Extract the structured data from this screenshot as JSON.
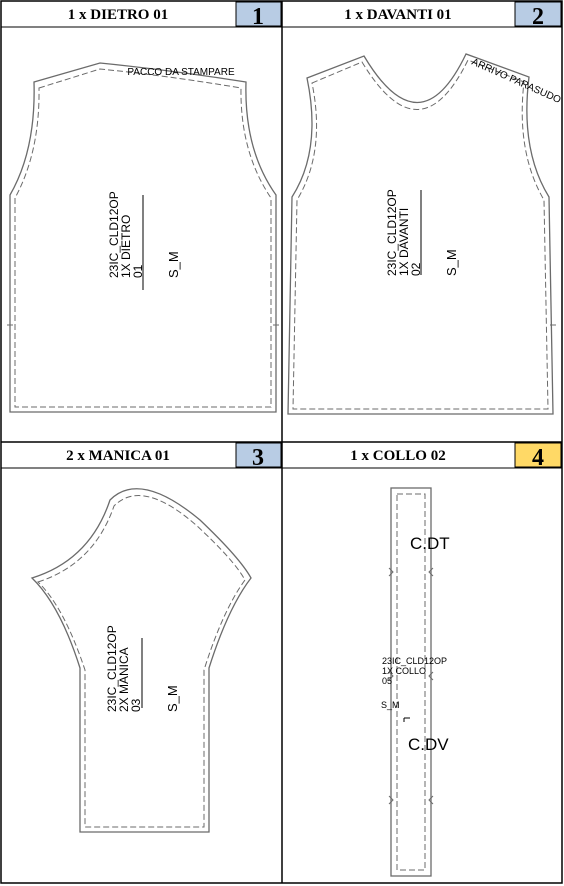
{
  "colors": {
    "badge_blue": "#b8cce4",
    "badge_yellow": "#ffd966",
    "line": "#000000",
    "pattern_line": "#6b6b6b"
  },
  "panels": [
    {
      "title": "1 x DIETRO 01",
      "number": "1",
      "label_lines": [
        "23IC_CLD12OP",
        "1X DIETRO",
        "01"
      ],
      "size": "S_M",
      "note": "PACCO DA STAMPARE"
    },
    {
      "title": "1 x DAVANTI 01",
      "number": "2",
      "label_lines": [
        "23IC_CLD12OP",
        "1X DAVANTI",
        "02"
      ],
      "size": "S_M",
      "note": "ARRIVO PARASUDO"
    },
    {
      "title": "2 x MANICA 01",
      "number": "3",
      "label_lines": [
        "23IC_CLD12OP",
        "2X MANICA",
        "03"
      ],
      "size": "S_M"
    },
    {
      "title": "1 x COLLO 02",
      "number": "4",
      "label_lines": [
        "23IC_CLD12OP",
        "1X COLLO",
        "05"
      ],
      "size": "S_M",
      "marks": [
        "C.DT",
        "C.DV"
      ]
    }
  ]
}
